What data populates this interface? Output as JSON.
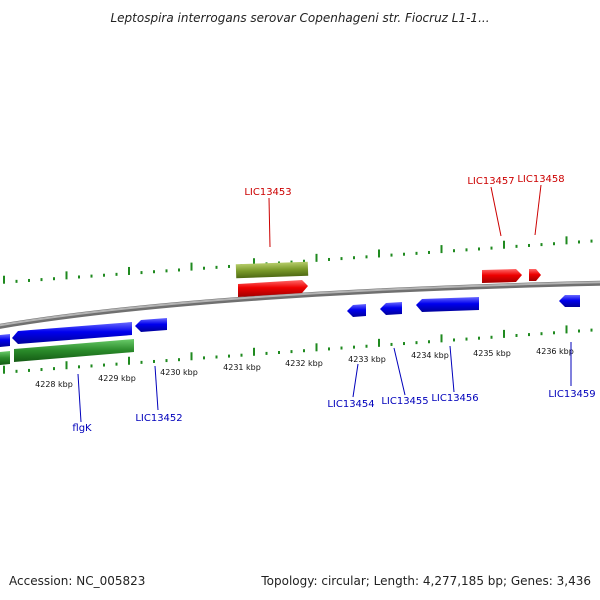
{
  "title": "Leptospira interrogans serovar Copenhageni str. Fiocruz L1-1...",
  "accession_label": "Accession: NC_005823",
  "summary": "Topology: circular; Length: 4,277,185 bp; Genes: 3,436",
  "colors": {
    "backbone": "#8a8a8a",
    "tick": "#1f8a1f",
    "forward_gene": "#e00000",
    "reverse_gene": "#0000dd",
    "gene_label_forward": "#cc0000",
    "gene_label_reverse": "#0000bb",
    "olive_feature": "#7a9a2a",
    "green_feature": "#2a8a2a"
  },
  "scale_labels": [
    "4228 kbp",
    "4229 kbp",
    "4230 kbp",
    "4231 kbp",
    "4232 kbp",
    "4233 kbp",
    "4234 kbp",
    "4235 kbp",
    "4236 kbp"
  ],
  "genes_forward": [
    "LIC13453",
    "LIC13457",
    "LIC13458"
  ],
  "genes_reverse": [
    "flgK",
    "LIC13452",
    "LIC13454",
    "LIC13455",
    "LIC13456",
    "LIC13459"
  ]
}
